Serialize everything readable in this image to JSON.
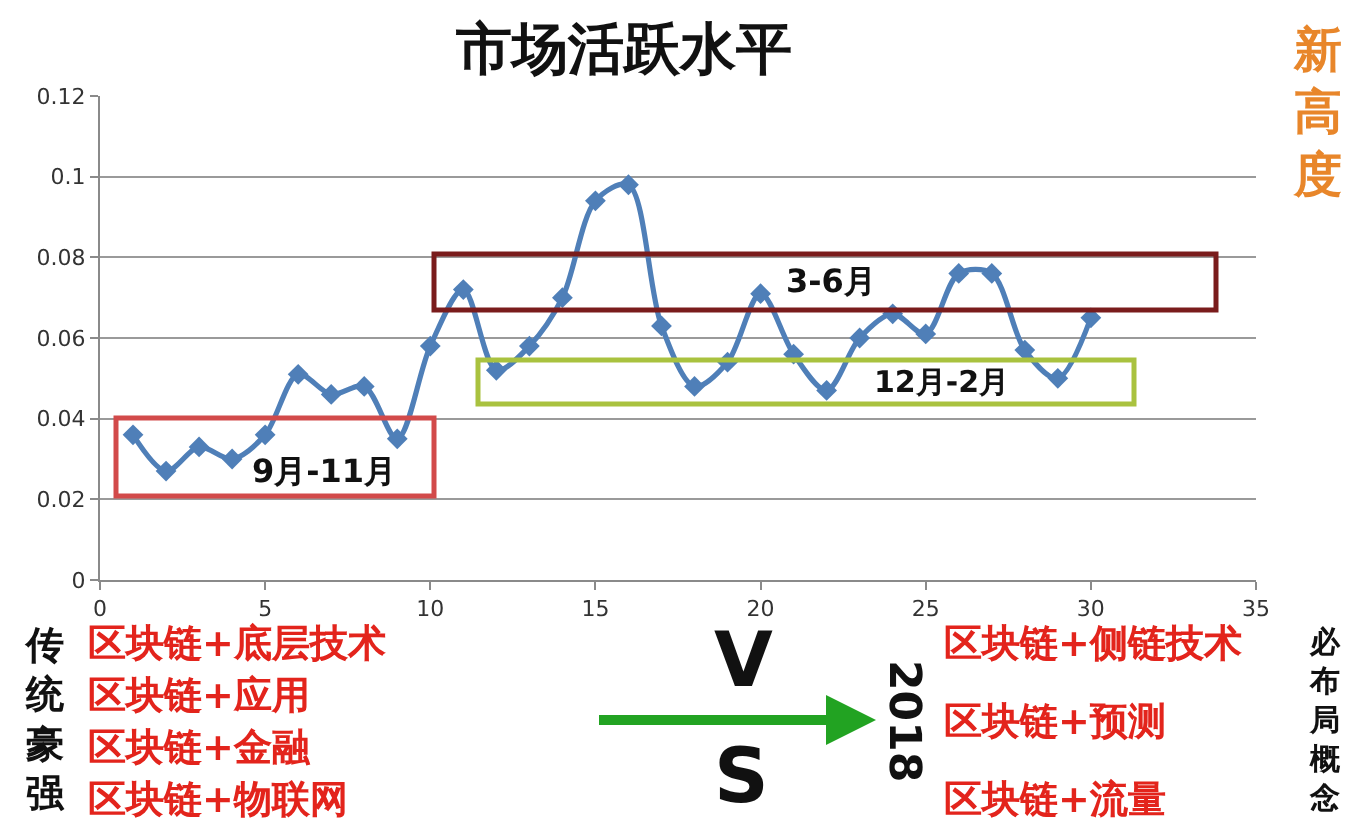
{
  "chart_data": {
    "type": "line",
    "title": "市场活跃水平",
    "x": [
      1,
      2,
      3,
      4,
      5,
      6,
      7,
      8,
      9,
      10,
      11,
      12,
      13,
      14,
      15,
      16,
      17,
      18,
      19,
      20,
      21,
      22,
      23,
      24,
      25,
      26,
      27,
      28,
      29,
      30
    ],
    "series": [
      {
        "color": "#4f7fb8",
        "values": [
          0.036,
          0.027,
          0.033,
          0.03,
          0.036,
          0.051,
          0.046,
          0.048,
          0.035,
          0.058,
          0.072,
          0.052,
          0.058,
          0.07,
          0.094,
          0.098,
          0.063,
          0.048,
          0.054,
          0.071,
          0.056,
          0.047,
          0.06,
          0.066,
          0.061,
          0.076,
          0.076,
          0.057,
          0.05,
          0.065
        ]
      }
    ],
    "xlim": [
      0,
      35
    ],
    "xticks": [
      0,
      5,
      10,
      15,
      20,
      25,
      30,
      35
    ],
    "ylim": [
      0,
      0.12
    ],
    "yticks": [
      0,
      0.02,
      0.04,
      0.06,
      0.08,
      0.1,
      0.12
    ],
    "grid": "y",
    "marker": "diamond",
    "line_style": "solid",
    "annotations": [
      "3-6月",
      "12月-2月",
      "9月-11月",
      "新高度",
      "传统豪强",
      "区块链+底层技术",
      "区块链+应用",
      "区块链+金融",
      "区块链+物联网",
      "V",
      "S",
      "2018",
      "区块链+侧链技术",
      "区块链+预测",
      "区块链+流量",
      "必布局概念"
    ]
  }
}
